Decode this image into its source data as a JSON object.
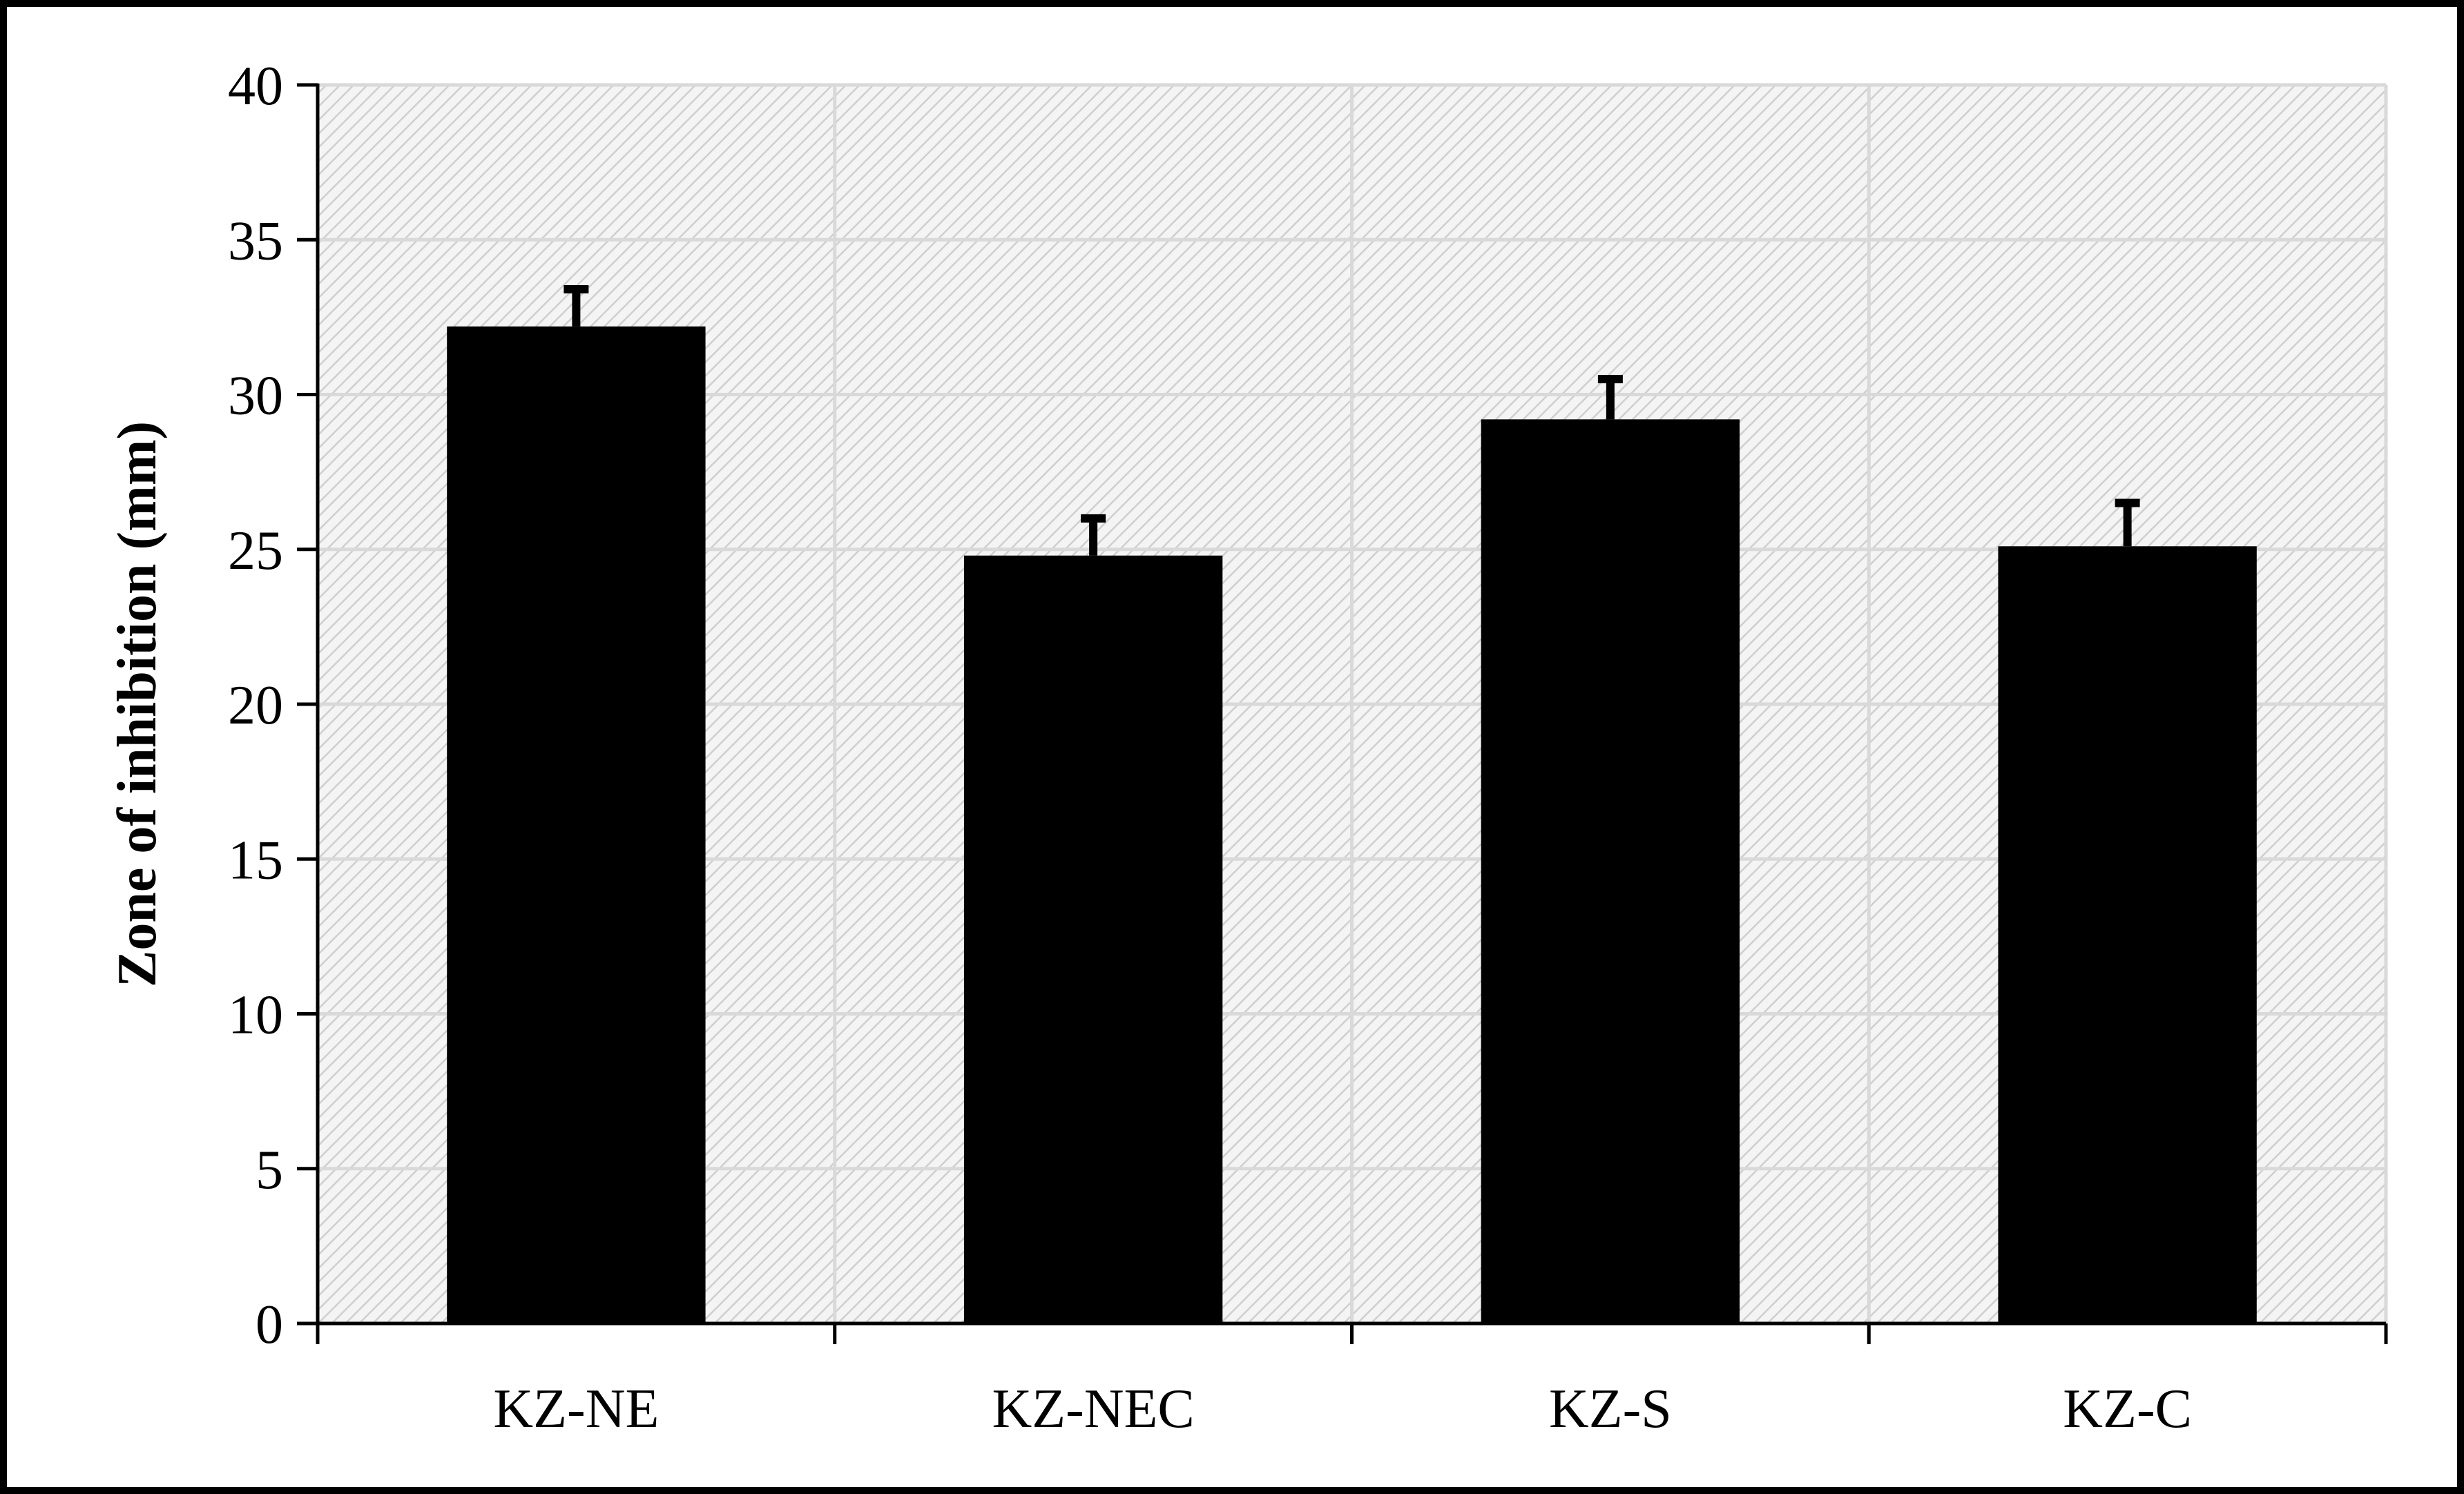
{
  "chart_data": {
    "type": "bar",
    "categories": [
      "KZ-NE",
      "KZ-NEC",
      "KZ-S",
      "KZ-C"
    ],
    "values": [
      32.2,
      24.8,
      29.2,
      25.1
    ],
    "errors": [
      1.2,
      1.2,
      1.3,
      1.4
    ],
    "title": "",
    "xlabel": "",
    "ylabel": "Zone of inhibition (mm)",
    "ylim": [
      0,
      40
    ],
    "yticks": [
      0,
      5,
      10,
      15,
      20,
      25,
      30,
      35,
      40
    ],
    "grid": true,
    "legend": "none",
    "bar_color": "#000000",
    "plot_background": "hatched light gray",
    "grid_color": "#d9d9d9"
  }
}
